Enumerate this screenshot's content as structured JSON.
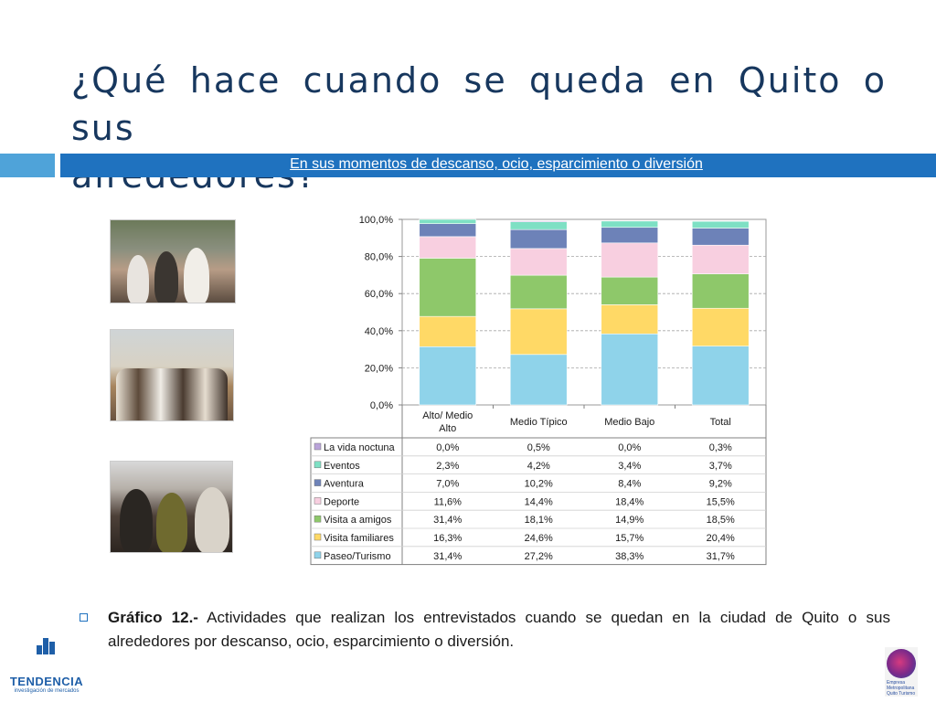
{
  "slide": {
    "title_line1": "¿Qué hace cuando se queda en Quito o sus",
    "title_line2": "alrededores?",
    "subtitle": "En sus momentos de descanso, ocio, esparcimiento o diversión",
    "caption_bold": "Gráfico 12.-",
    "caption_text": " Actividades que realizan los entrevistados cuando se quedan en la ciudad de Quito o sus alrededores por descanso, ocio, esparcimiento o diversión.",
    "logo_left": "TENDENCIA",
    "logo_left_sub": "investigación de mercados",
    "logo_right": "Empresa Metropolitana Quito Turismo"
  },
  "colors": {
    "title": "#17375e",
    "band": "#1f72bf",
    "band_light": "#4fa3d9"
  },
  "chart_data": {
    "type": "bar",
    "stacked": true,
    "categories": [
      "Alto/ Medio Alto",
      "Medio Típico",
      "Medio Bajo",
      "Total"
    ],
    "ylim": [
      0,
      100
    ],
    "yticks": [
      "0,0%",
      "20,0%",
      "40,0%",
      "60,0%",
      "80,0%",
      "100,0%"
    ],
    "ytick_values": [
      0,
      20,
      40,
      60,
      80,
      100
    ],
    "grid": true,
    "legend": "table-left",
    "series": [
      {
        "name": "Paseo/Turismo",
        "values": [
          31.4,
          27.2,
          38.3,
          31.7
        ],
        "labels": [
          "31,4%",
          "27,2%",
          "38,3%",
          "31,7%"
        ],
        "color": "#8fd3ea"
      },
      {
        "name": "Visita familiares",
        "values": [
          16.3,
          24.6,
          15.7,
          20.4
        ],
        "labels": [
          "16,3%",
          "24,6%",
          "15,7%",
          "20,4%"
        ],
        "color": "#ffd966"
      },
      {
        "name": "Visita a amigos",
        "values": [
          31.4,
          18.1,
          14.9,
          18.5
        ],
        "labels": [
          "31,4%",
          "18,1%",
          "14,9%",
          "18,5%"
        ],
        "color": "#8ec86a"
      },
      {
        "name": "Deporte",
        "values": [
          11.6,
          14.4,
          18.4,
          15.5
        ],
        "labels": [
          "11,6%",
          "14,4%",
          "18,4%",
          "15,5%"
        ],
        "color": "#f8cfe0"
      },
      {
        "name": "Aventura",
        "values": [
          7.0,
          10.2,
          8.4,
          9.2
        ],
        "labels": [
          "7,0%",
          "10,2%",
          "8,4%",
          "9,2%"
        ],
        "color": "#6d82b8"
      },
      {
        "name": "Eventos",
        "values": [
          2.3,
          4.2,
          3.4,
          3.7
        ],
        "labels": [
          "2,3%",
          "4,2%",
          "3,4%",
          "3,7%"
        ],
        "color": "#7ee0c4"
      },
      {
        "name": "La vida noctuna",
        "values": [
          0.0,
          0.5,
          0.0,
          0.3
        ],
        "labels": [
          "0,0%",
          "0,5%",
          "0,0%",
          "0,3%"
        ],
        "color": "#b9a3d9"
      }
    ]
  }
}
